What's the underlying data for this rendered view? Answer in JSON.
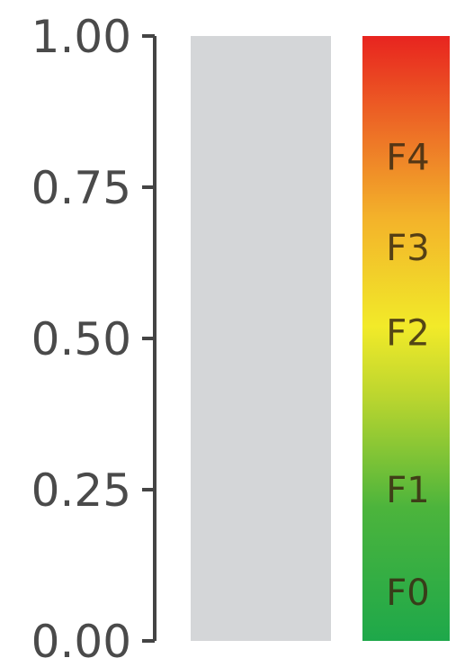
{
  "chart_data": {
    "type": "bar",
    "categories": [
      ""
    ],
    "values": [
      0
    ],
    "ylim": [
      0,
      1
    ],
    "y_ticks": [
      {
        "value": 0.0,
        "label": "0.00"
      },
      {
        "value": 0.25,
        "label": "0.25"
      },
      {
        "value": 0.5,
        "label": "0.50"
      },
      {
        "value": 0.75,
        "label": "0.75"
      },
      {
        "value": 1.0,
        "label": "1.00"
      }
    ],
    "bar_background_color": "#d4d6d8",
    "color_scale": {
      "stops": [
        {
          "value": 0.0,
          "color": "#1ea84a"
        },
        {
          "value": 0.22,
          "color": "#4cb43c"
        },
        {
          "value": 0.4,
          "color": "#b9d52f"
        },
        {
          "value": 0.52,
          "color": "#f2ea29"
        },
        {
          "value": 0.7,
          "color": "#f3b22a"
        },
        {
          "value": 0.82,
          "color": "#ee7a27"
        },
        {
          "value": 1.0,
          "color": "#e8241f"
        }
      ],
      "labels": [
        {
          "text": "F0",
          "value": 0.08
        },
        {
          "text": "F1",
          "value": 0.25
        },
        {
          "text": "F2",
          "value": 0.51
        },
        {
          "text": "F3",
          "value": 0.65
        },
        {
          "text": "F4",
          "value": 0.8
        }
      ]
    },
    "grid": false,
    "legend": "none"
  }
}
